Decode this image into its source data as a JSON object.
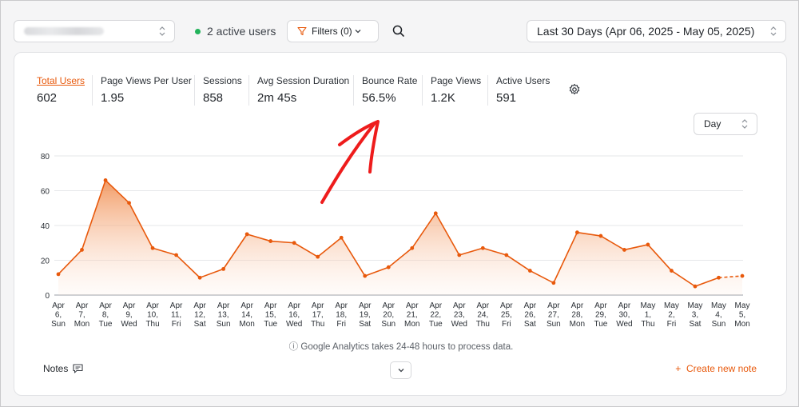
{
  "topbar": {
    "site_select": {
      "value": "",
      "icon": "updown-icon"
    },
    "active_users_text": "2 active users",
    "filters_label": "Filters (0)",
    "search_icon": "search-icon",
    "date_range": "Last 30 Days (Apr 06, 2025 - May 05, 2025)"
  },
  "metrics": [
    {
      "label": "Total Users",
      "value": "602",
      "active": true
    },
    {
      "label": "Page Views Per User",
      "value": "1.95"
    },
    {
      "label": "Sessions",
      "value": "858"
    },
    {
      "label": "Avg Session Duration",
      "value": "2m 45s"
    },
    {
      "label": "Bounce Rate",
      "value": "56.5%"
    },
    {
      "label": "Page Views",
      "value": "1.2K"
    },
    {
      "label": "Active Users",
      "value": "591"
    }
  ],
  "granularity_select": "Day",
  "colors": {
    "accent": "#e8590c",
    "active_dot": "#22b35b"
  },
  "chart_data": {
    "type": "area",
    "title": "",
    "xlabel": "",
    "ylabel": "",
    "ylim": [
      0,
      80
    ],
    "yticks": [
      "0",
      "20",
      "40",
      "60",
      "80"
    ],
    "grid": true,
    "categories": [
      [
        "Apr",
        "6,",
        "Sun"
      ],
      [
        "Apr",
        "7,",
        "Mon"
      ],
      [
        "Apr",
        "8,",
        "Tue"
      ],
      [
        "Apr",
        "9,",
        "Wed"
      ],
      [
        "Apr",
        "10,",
        "Thu"
      ],
      [
        "Apr",
        "11,",
        "Fri"
      ],
      [
        "Apr",
        "12,",
        "Sat"
      ],
      [
        "Apr",
        "13,",
        "Sun"
      ],
      [
        "Apr",
        "14,",
        "Mon"
      ],
      [
        "Apr",
        "15,",
        "Tue"
      ],
      [
        "Apr",
        "16,",
        "Wed"
      ],
      [
        "Apr",
        "17,",
        "Thu"
      ],
      [
        "Apr",
        "18,",
        "Fri"
      ],
      [
        "Apr",
        "19,",
        "Sat"
      ],
      [
        "Apr",
        "20,",
        "Sun"
      ],
      [
        "Apr",
        "21,",
        "Mon"
      ],
      [
        "Apr",
        "22,",
        "Tue"
      ],
      [
        "Apr",
        "23,",
        "Wed"
      ],
      [
        "Apr",
        "24,",
        "Thu"
      ],
      [
        "Apr",
        "25,",
        "Fri"
      ],
      [
        "Apr",
        "26,",
        "Sat"
      ],
      [
        "Apr",
        "27,",
        "Sun"
      ],
      [
        "Apr",
        "28,",
        "Mon"
      ],
      [
        "Apr",
        "29,",
        "Tue"
      ],
      [
        "Apr",
        "30,",
        "Wed"
      ],
      [
        "May",
        "1,",
        "Thu"
      ],
      [
        "May",
        "2,",
        "Fri"
      ],
      [
        "May",
        "3,",
        "Sat"
      ],
      [
        "May",
        "4,",
        "Sun"
      ],
      [
        "May",
        "5,",
        "Mon"
      ]
    ],
    "series": [
      {
        "values": [
          12,
          26,
          66,
          53,
          27,
          23,
          10,
          15,
          35,
          31,
          30,
          22,
          33,
          11,
          16,
          27,
          47,
          23,
          27,
          23,
          14,
          7,
          36,
          34,
          26,
          29,
          14,
          5,
          10,
          11
        ],
        "dashed_last_segment": true
      }
    ]
  },
  "footer": {
    "ga_note": "Google Analytics takes 24-48 hours to process data.",
    "notes_label": "Notes",
    "create_note_label": "Create new note"
  }
}
